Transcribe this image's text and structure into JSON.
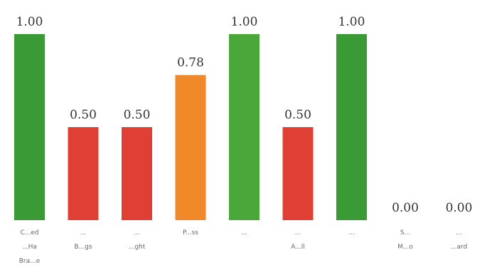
{
  "chart_data": {
    "type": "bar",
    "categories": [
      [
        "C...ed",
        "...Ha",
        "Bra...e"
      ],
      [
        "...",
        "B...gs"
      ],
      [
        "...",
        "...ght"
      ],
      [
        "P...ss"
      ],
      [
        "..."
      ],
      [
        "...",
        "A...ll"
      ],
      [
        "..."
      ],
      [
        "S...",
        "M...o"
      ],
      [
        "...",
        "...ard"
      ]
    ],
    "values": [
      1.0,
      0.5,
      0.5,
      0.78,
      1.0,
      0.5,
      1.0,
      0.0,
      0.0
    ],
    "value_labels": [
      "1.00",
      "0.50",
      "0.50",
      "0.78",
      "1.00",
      "0.50",
      "1.00",
      "0.00",
      "0.00"
    ],
    "colors": [
      "#3a9a35",
      "#e04033",
      "#e04033",
      "#f0892a",
      "#4aa83a",
      "#e04033",
      "#3a9a35",
      "#3a9a35",
      "#3a9a35"
    ],
    "title": "",
    "xlabel": "",
    "ylabel": "",
    "ylim": [
      0,
      1
    ],
    "grid": false,
    "legend": "none"
  }
}
